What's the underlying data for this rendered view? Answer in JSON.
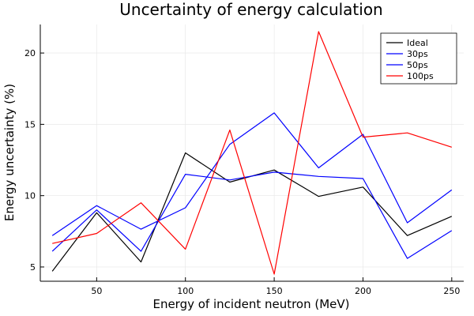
{
  "chart_data": {
    "type": "line",
    "title": "Uncertainty of energy calculation",
    "xlabel": "Energy of incident neutron (MeV)",
    "ylabel": "Energy uncertainty (%)",
    "x": [
      25,
      50,
      75,
      100,
      125,
      150,
      175,
      200,
      225,
      250
    ],
    "xlim": [
      18.25,
      256.75
    ],
    "ylim": [
      4.0,
      22.0
    ],
    "xticks": [
      50,
      100,
      150,
      200,
      250
    ],
    "yticks": [
      5,
      10,
      15,
      20
    ],
    "grid": true,
    "legend_position": "top-right",
    "series": [
      {
        "name": "Ideal",
        "color": "#000000",
        "values": [
          4.7,
          8.8,
          5.35,
          13.0,
          10.95,
          11.8,
          9.95,
          10.6,
          7.2,
          8.55
        ]
      },
      {
        "name": "30ps",
        "color": "#0000ff",
        "values": [
          6.1,
          9.0,
          6.1,
          11.5,
          11.1,
          11.65,
          11.35,
          11.2,
          5.6,
          7.55
        ]
      },
      {
        "name": "50ps",
        "color": "#0000ff",
        "values": [
          7.2,
          9.3,
          7.65,
          9.15,
          13.6,
          15.8,
          11.95,
          14.3,
          8.1,
          10.4
        ]
      },
      {
        "name": "100ps",
        "color": "#ff0000",
        "values": [
          6.65,
          7.35,
          9.5,
          6.25,
          14.6,
          4.5,
          21.5,
          14.1,
          14.4,
          13.4
        ]
      }
    ]
  }
}
